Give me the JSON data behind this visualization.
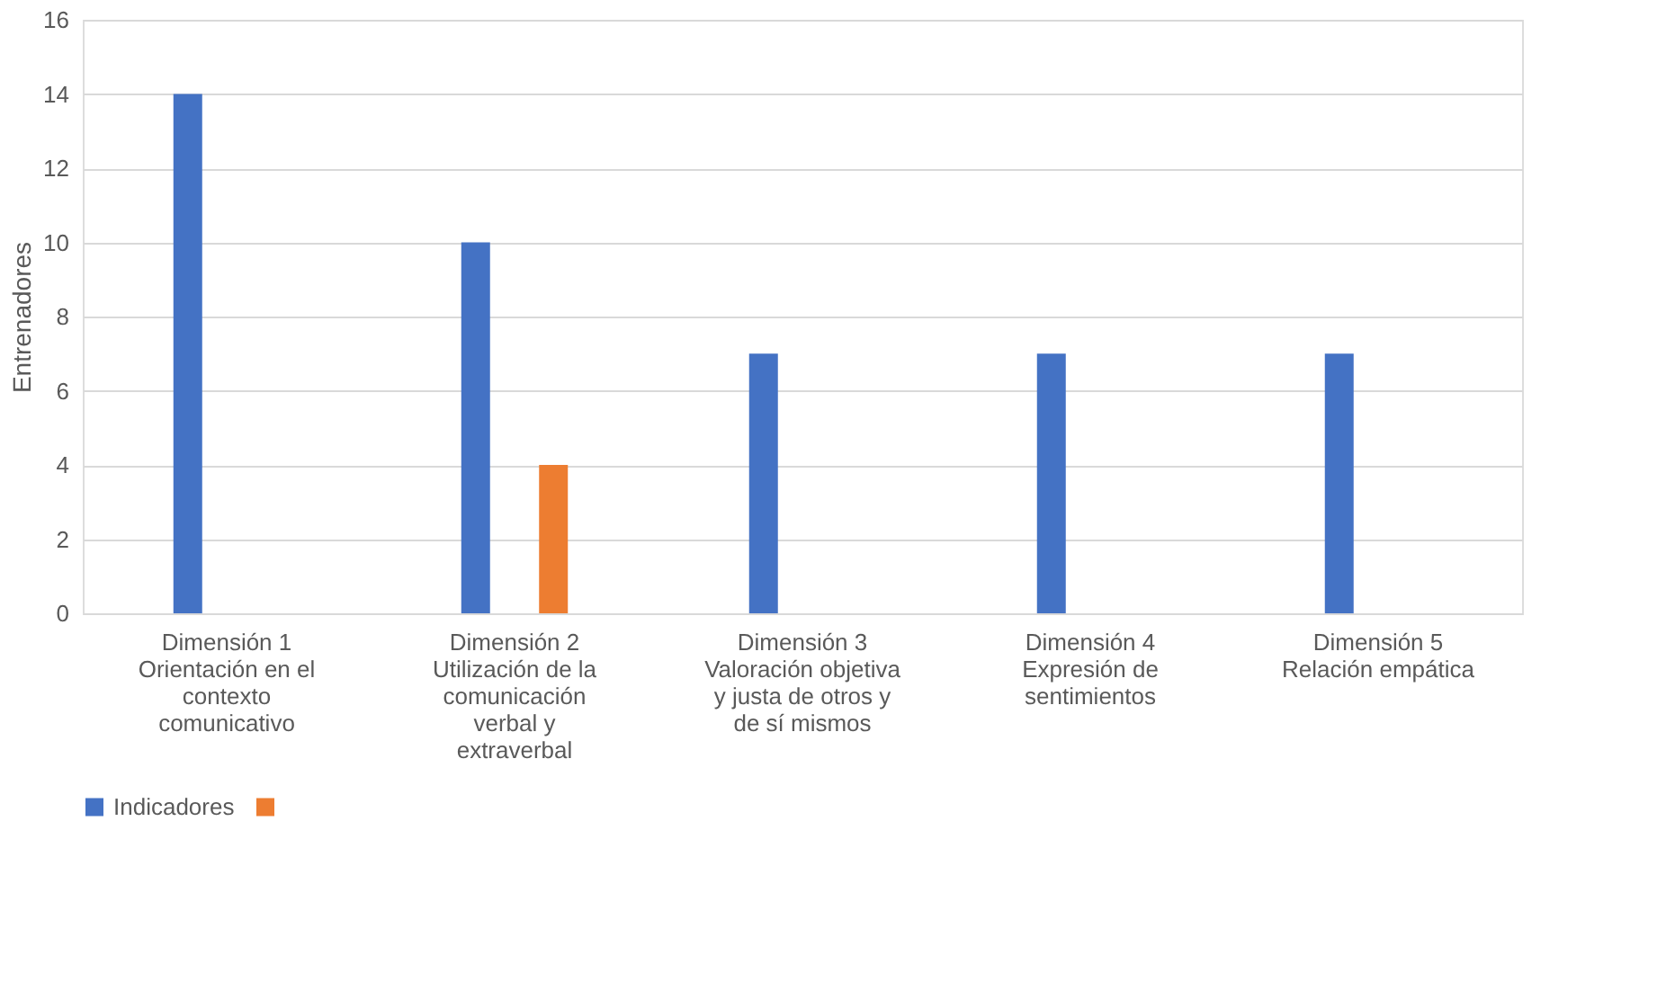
{
  "chart_data": {
    "type": "bar",
    "ylabel": "Entrenadores",
    "categories": [
      "Dimensión 1\nOrientación en el\ncontexto\ncomunicativo",
      "Dimensión 2\nUtilización de la\ncomunicación\nverbal y\nextraverbal",
      "Dimensión 3\nValoración objetiva\ny justa de otros y\nde sí mismos",
      "Dimensión 4\nExpresión de\nsentimientos",
      "Dimensión 5\nRelación empática"
    ],
    "series": [
      {
        "name": "Indicadores",
        "color": "#4472c4",
        "values": [
          14,
          10,
          7,
          7,
          7
        ]
      },
      {
        "color": "#ed7d31",
        "values": [
          null,
          4,
          null,
          null,
          null
        ]
      }
    ],
    "ylim": [
      0,
      16
    ],
    "yticks": [
      0,
      2,
      4,
      6,
      8,
      10,
      12,
      14,
      16
    ],
    "grid": "y",
    "legend": "bottom"
  }
}
